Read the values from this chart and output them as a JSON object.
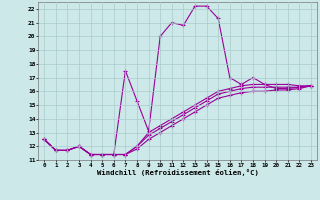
{
  "xlabel": "Windchill (Refroidissement éolien,°C)",
  "bg_color": "#cce8e8",
  "grid_color": "#aacccc",
  "line_color": "#990099",
  "xlim": [
    -0.5,
    23.5
  ],
  "ylim": [
    11,
    22.5
  ],
  "xticks": [
    0,
    1,
    2,
    3,
    4,
    5,
    6,
    7,
    8,
    9,
    10,
    11,
    12,
    13,
    14,
    15,
    16,
    17,
    18,
    19,
    20,
    21,
    22,
    23
  ],
  "yticks": [
    11,
    12,
    13,
    14,
    15,
    16,
    17,
    18,
    19,
    20,
    21,
    22
  ],
  "series": [
    [
      12.5,
      11.7,
      11.7,
      12.0,
      11.4,
      11.4,
      11.4,
      17.5,
      15.3,
      13.1,
      20.0,
      21.0,
      20.8,
      22.2,
      22.2,
      21.3,
      17.0,
      16.5,
      17.0,
      16.5,
      16.2,
      16.2,
      16.3,
      16.4
    ],
    [
      12.5,
      11.7,
      11.7,
      12.0,
      11.4,
      11.4,
      11.4,
      11.4,
      12.0,
      13.0,
      13.5,
      14.0,
      14.5,
      15.0,
      15.5,
      16.0,
      16.2,
      16.4,
      16.5,
      16.5,
      16.5,
      16.5,
      16.4,
      16.4
    ],
    [
      12.5,
      11.7,
      11.7,
      12.0,
      11.4,
      11.4,
      11.4,
      11.4,
      12.0,
      12.8,
      13.3,
      13.8,
      14.3,
      14.8,
      15.3,
      15.8,
      16.0,
      16.2,
      16.3,
      16.3,
      16.3,
      16.3,
      16.3,
      16.4
    ],
    [
      12.5,
      11.7,
      11.7,
      12.0,
      11.4,
      11.4,
      11.4,
      11.4,
      11.8,
      12.5,
      13.0,
      13.5,
      14.0,
      14.5,
      15.0,
      15.5,
      15.7,
      15.9,
      16.0,
      16.0,
      16.1,
      16.1,
      16.2,
      16.4
    ]
  ]
}
